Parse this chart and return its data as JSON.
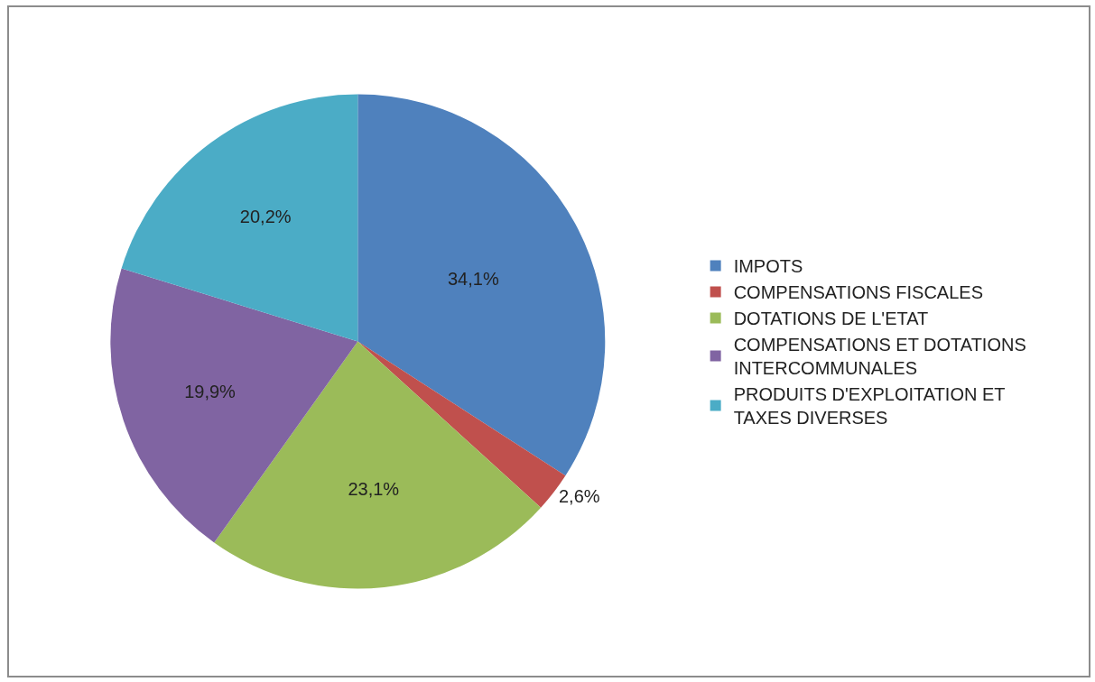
{
  "chart_data": {
    "type": "pie",
    "categories": [
      "IMPOTS",
      "COMPENSATIONS FISCALES",
      "DOTATIONS DE L'ETAT",
      "COMPENSATIONS ET DOTATIONS INTERCOMMUNALES",
      "PRODUITS D'EXPLOITATION ET TAXES DIVERSES"
    ],
    "values": [
      34.1,
      2.6,
      23.1,
      19.9,
      20.2
    ],
    "colors": [
      "#4f81bd",
      "#c0504d",
      "#9bbb59",
      "#8064a2",
      "#4bacc6"
    ],
    "value_labels": [
      "34,1%",
      "2,6%",
      "23,1%",
      "19,9%",
      "20,2%"
    ],
    "legend": "right"
  }
}
